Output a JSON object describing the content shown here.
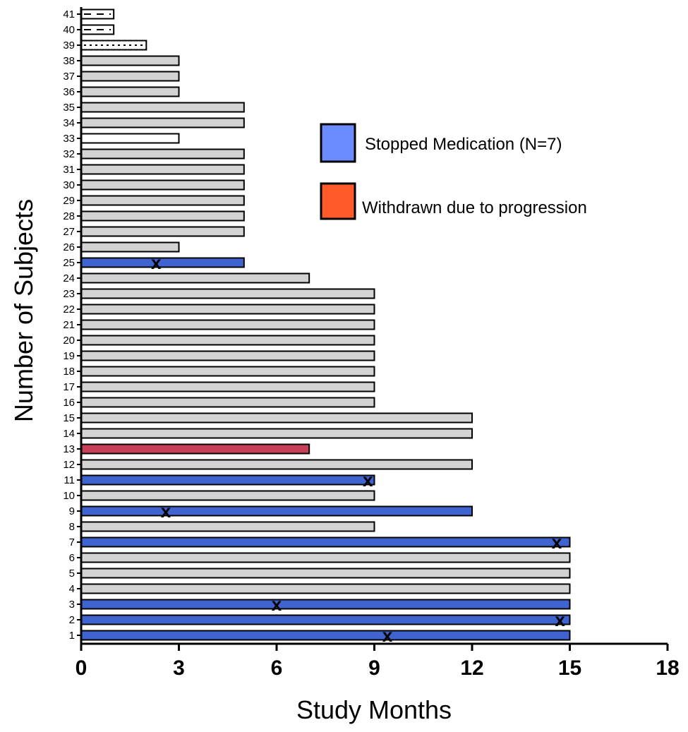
{
  "chart_data": {
    "type": "bar",
    "orientation": "horizontal",
    "xlabel": "Study Months",
    "ylabel": "Number of Subjects",
    "xlim": [
      0,
      18
    ],
    "xticks": [
      0,
      3,
      6,
      9,
      12,
      15,
      18
    ],
    "grid": false,
    "legend": {
      "placement": "top-right",
      "entries": [
        {
          "label": "Stopped Medication (N=7)",
          "color": "#6b8cff"
        },
        {
          "label": "Withdrawn due to progression",
          "color": "#ff5a2a"
        }
      ]
    },
    "colors": {
      "default": "#d3d3d3",
      "stopped": "#3f63cf",
      "progression": "#c6405a",
      "open": "#ffffff"
    },
    "subjects": [
      {
        "id": 1,
        "months": 15,
        "status": "stopped",
        "x_mark": 9.4
      },
      {
        "id": 2,
        "months": 15,
        "status": "stopped",
        "x_mark": 14.7
      },
      {
        "id": 3,
        "months": 15,
        "status": "stopped",
        "x_mark": 6.0
      },
      {
        "id": 4,
        "months": 15,
        "status": "default"
      },
      {
        "id": 5,
        "months": 15,
        "status": "default"
      },
      {
        "id": 6,
        "months": 15,
        "status": "default"
      },
      {
        "id": 7,
        "months": 15,
        "status": "stopped",
        "x_mark": 14.6
      },
      {
        "id": 8,
        "months": 9,
        "status": "default"
      },
      {
        "id": 9,
        "months": 12,
        "status": "stopped",
        "x_mark": 2.6
      },
      {
        "id": 10,
        "months": 9,
        "status": "default"
      },
      {
        "id": 11,
        "months": 9,
        "status": "stopped",
        "x_mark": 8.8
      },
      {
        "id": 12,
        "months": 12,
        "status": "default"
      },
      {
        "id": 13,
        "months": 7,
        "status": "progression"
      },
      {
        "id": 14,
        "months": 12,
        "status": "default"
      },
      {
        "id": 15,
        "months": 12,
        "status": "default"
      },
      {
        "id": 16,
        "months": 9,
        "status": "default"
      },
      {
        "id": 17,
        "months": 9,
        "status": "default"
      },
      {
        "id": 18,
        "months": 9,
        "status": "default"
      },
      {
        "id": 19,
        "months": 9,
        "status": "default"
      },
      {
        "id": 20,
        "months": 9,
        "status": "default"
      },
      {
        "id": 21,
        "months": 9,
        "status": "default"
      },
      {
        "id": 22,
        "months": 9,
        "status": "default"
      },
      {
        "id": 23,
        "months": 9,
        "status": "default"
      },
      {
        "id": 24,
        "months": 7,
        "status": "default"
      },
      {
        "id": 25,
        "months": 5,
        "status": "stopped",
        "x_mark": 2.3
      },
      {
        "id": 26,
        "months": 3,
        "status": "default"
      },
      {
        "id": 27,
        "months": 5,
        "status": "default"
      },
      {
        "id": 28,
        "months": 5,
        "status": "default"
      },
      {
        "id": 29,
        "months": 5,
        "status": "default"
      },
      {
        "id": 30,
        "months": 5,
        "status": "default"
      },
      {
        "id": 31,
        "months": 5,
        "status": "default"
      },
      {
        "id": 32,
        "months": 5,
        "status": "default"
      },
      {
        "id": 33,
        "months": 3,
        "status": "open"
      },
      {
        "id": 34,
        "months": 5,
        "status": "default"
      },
      {
        "id": 35,
        "months": 5,
        "status": "default"
      },
      {
        "id": 36,
        "months": 3,
        "status": "default"
      },
      {
        "id": 37,
        "months": 3,
        "status": "default"
      },
      {
        "id": 38,
        "months": 3,
        "status": "default"
      },
      {
        "id": 39,
        "months": 2,
        "status": "open",
        "pattern": "dotted"
      },
      {
        "id": 40,
        "months": 1,
        "status": "open",
        "pattern": "dashed"
      },
      {
        "id": 41,
        "months": 1,
        "status": "open",
        "pattern": "dashed"
      }
    ]
  }
}
